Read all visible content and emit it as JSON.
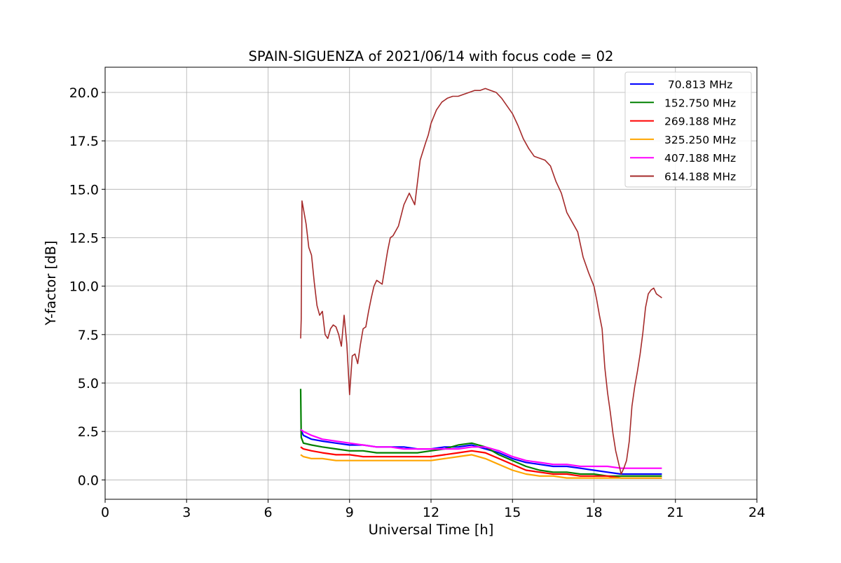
{
  "chart_data": {
    "type": "line",
    "title": "SPAIN-SIGUENZA of 2021/06/14 with focus code = 02",
    "xlabel": "Universal Time [h]",
    "ylabel": "Y-factor [dB]",
    "xlim": [
      0,
      24
    ],
    "ylim": [
      -1.0,
      21.3
    ],
    "x_ticks": [
      0,
      3,
      6,
      9,
      12,
      15,
      18,
      21,
      24
    ],
    "y_ticks": [
      0.0,
      2.5,
      5.0,
      7.5,
      10.0,
      12.5,
      15.0,
      17.5,
      20.0
    ],
    "x_tick_labels": [
      "0",
      "3",
      "6",
      "9",
      "12",
      "15",
      "18",
      "21",
      "24"
    ],
    "y_tick_labels": [
      "0.0",
      "2.5",
      "5.0",
      "7.5",
      "10.0",
      "12.5",
      "15.0",
      "17.5",
      "20.0"
    ],
    "grid": true,
    "legend_position": "top-right",
    "series": [
      {
        "name": " 70.813 MHz",
        "color": "#0000ff",
        "x": [
          7.2,
          7.3,
          7.6,
          8.0,
          8.5,
          9.0,
          9.5,
          10.0,
          10.5,
          11.0,
          11.5,
          12.0,
          12.5,
          13.0,
          13.5,
          14.0,
          14.5,
          15.0,
          15.5,
          16.0,
          16.5,
          17.0,
          17.5,
          18.0,
          18.5,
          19.0,
          19.5,
          20.0,
          20.5
        ],
        "y": [
          2.6,
          2.3,
          2.1,
          2.0,
          1.9,
          1.8,
          1.8,
          1.7,
          1.7,
          1.7,
          1.6,
          1.6,
          1.7,
          1.7,
          1.8,
          1.6,
          1.4,
          1.1,
          0.9,
          0.8,
          0.7,
          0.7,
          0.6,
          0.5,
          0.4,
          0.3,
          0.3,
          0.3,
          0.3
        ]
      },
      {
        "name": "152.750 MHz",
        "color": "#008000",
        "x": [
          7.2,
          7.22,
          7.3,
          7.6,
          8.0,
          8.5,
          9.0,
          9.5,
          10.0,
          10.5,
          11.0,
          11.5,
          12.0,
          12.5,
          13.0,
          13.5,
          14.0,
          14.5,
          15.0,
          15.5,
          16.0,
          16.5,
          17.0,
          17.5,
          18.0,
          18.5,
          19.0,
          19.5,
          20.0,
          20.5
        ],
        "y": [
          4.7,
          2.2,
          1.9,
          1.8,
          1.7,
          1.6,
          1.5,
          1.5,
          1.4,
          1.4,
          1.4,
          1.4,
          1.5,
          1.6,
          1.8,
          1.9,
          1.7,
          1.3,
          1.0,
          0.7,
          0.5,
          0.4,
          0.4,
          0.3,
          0.3,
          0.2,
          0.2,
          0.2,
          0.2,
          0.2
        ]
      },
      {
        "name": "269.188 MHz",
        "color": "#ff0000",
        "x": [
          7.2,
          7.3,
          7.6,
          8.0,
          8.5,
          9.0,
          9.5,
          10.0,
          10.5,
          11.0,
          11.5,
          12.0,
          12.5,
          13.0,
          13.5,
          14.0,
          14.5,
          15.0,
          15.5,
          16.0,
          16.5,
          17.0,
          17.5,
          18.0,
          18.5,
          19.0,
          19.5,
          20.0,
          20.5
        ],
        "y": [
          1.7,
          1.6,
          1.5,
          1.4,
          1.3,
          1.3,
          1.2,
          1.2,
          1.2,
          1.2,
          1.2,
          1.2,
          1.3,
          1.4,
          1.5,
          1.4,
          1.1,
          0.8,
          0.5,
          0.4,
          0.3,
          0.3,
          0.2,
          0.2,
          0.2,
          0.1,
          0.1,
          0.1,
          0.1
        ]
      },
      {
        "name": "325.250 MHz",
        "color": "#ffa500",
        "x": [
          7.2,
          7.3,
          7.6,
          8.0,
          8.5,
          9.0,
          9.5,
          10.0,
          10.5,
          11.0,
          11.5,
          12.0,
          12.5,
          13.0,
          13.5,
          14.0,
          14.5,
          15.0,
          15.5,
          16.0,
          16.5,
          17.0,
          17.5,
          18.0,
          18.5,
          19.0,
          19.5,
          20.0,
          20.5
        ],
        "y": [
          1.3,
          1.2,
          1.1,
          1.1,
          1.0,
          1.0,
          1.0,
          1.0,
          1.0,
          1.0,
          1.0,
          1.0,
          1.1,
          1.2,
          1.3,
          1.1,
          0.8,
          0.5,
          0.3,
          0.2,
          0.2,
          0.1,
          0.1,
          0.1,
          0.1,
          0.1,
          0.1,
          0.1,
          0.1
        ]
      },
      {
        "name": "407.188 MHz",
        "color": "#ff00ff",
        "x": [
          7.2,
          7.3,
          7.6,
          8.0,
          8.5,
          9.0,
          9.5,
          10.0,
          10.5,
          11.0,
          11.5,
          12.0,
          12.5,
          13.0,
          13.5,
          14.0,
          14.5,
          15.0,
          15.5,
          16.0,
          16.5,
          17.0,
          17.5,
          18.0,
          18.5,
          19.0,
          19.5,
          20.0,
          20.5
        ],
        "y": [
          2.6,
          2.5,
          2.3,
          2.1,
          2.0,
          1.9,
          1.8,
          1.7,
          1.7,
          1.6,
          1.6,
          1.6,
          1.6,
          1.6,
          1.7,
          1.7,
          1.5,
          1.2,
          1.0,
          0.9,
          0.8,
          0.8,
          0.7,
          0.7,
          0.7,
          0.6,
          0.6,
          0.6,
          0.6
        ]
      },
      {
        "name": "614.188 MHz",
        "color": "#a52a2a",
        "x": [
          7.2,
          7.22,
          7.25,
          7.3,
          7.4,
          7.5,
          7.6,
          7.7,
          7.8,
          7.9,
          8.0,
          8.1,
          8.2,
          8.3,
          8.4,
          8.5,
          8.6,
          8.7,
          8.8,
          8.9,
          9.0,
          9.1,
          9.2,
          9.3,
          9.4,
          9.5,
          9.6,
          9.7,
          9.8,
          9.9,
          10.0,
          10.2,
          10.4,
          10.5,
          10.6,
          10.8,
          11.0,
          11.2,
          11.4,
          11.6,
          11.8,
          11.9,
          12.0,
          12.2,
          12.4,
          12.6,
          12.8,
          13.0,
          13.2,
          13.4,
          13.6,
          13.8,
          14.0,
          14.2,
          14.4,
          14.6,
          14.8,
          15.0,
          15.2,
          15.4,
          15.6,
          15.8,
          16.0,
          16.2,
          16.4,
          16.6,
          16.8,
          17.0,
          17.2,
          17.4,
          17.6,
          17.8,
          18.0,
          18.1,
          18.2,
          18.3,
          18.4,
          18.5,
          18.6,
          18.7,
          18.8,
          18.9,
          19.0,
          19.1,
          19.2,
          19.3,
          19.4,
          19.5,
          19.6,
          19.7,
          19.8,
          19.9,
          20.0,
          20.1,
          20.2,
          20.3,
          20.4,
          20.5
        ],
        "y": [
          7.3,
          8.3,
          14.4,
          14.0,
          13.2,
          12.0,
          11.6,
          10.2,
          9.0,
          8.5,
          8.7,
          7.5,
          7.3,
          7.8,
          8.0,
          7.9,
          7.5,
          6.9,
          8.5,
          7.0,
          4.4,
          6.4,
          6.5,
          6.0,
          7.0,
          7.8,
          7.9,
          8.7,
          9.4,
          10.0,
          10.3,
          10.1,
          11.8,
          12.5,
          12.6,
          13.1,
          14.2,
          14.8,
          14.2,
          16.5,
          17.4,
          17.8,
          18.4,
          19.1,
          19.5,
          19.7,
          19.8,
          19.8,
          19.9,
          20.0,
          20.1,
          20.1,
          20.2,
          20.1,
          20.0,
          19.7,
          19.3,
          18.9,
          18.3,
          17.6,
          17.1,
          16.7,
          16.6,
          16.5,
          16.2,
          15.4,
          14.8,
          13.8,
          13.3,
          12.8,
          11.5,
          10.7,
          10.0,
          9.3,
          8.5,
          7.8,
          5.8,
          4.5,
          3.5,
          2.4,
          1.5,
          0.9,
          0.3,
          0.6,
          1.0,
          2.0,
          3.8,
          4.8,
          5.6,
          6.5,
          7.6,
          8.9,
          9.6,
          9.8,
          9.9,
          9.6,
          9.5,
          9.4
        ]
      }
    ]
  }
}
